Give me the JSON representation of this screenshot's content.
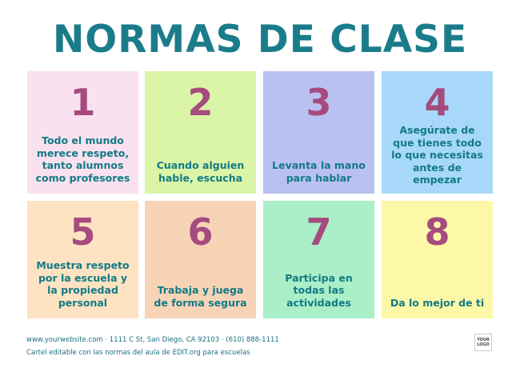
{
  "title": "NORMAS DE CLASE",
  "rules": [
    {
      "number": "1",
      "text": "Todo el mundo\nmerece respeto,\ntanto alumnos\ncomo profesores",
      "color": "#f9e1ef"
    },
    {
      "number": "2",
      "text": "Cuando alguien\nhable, escucha",
      "color": "#daf5a7"
    },
    {
      "number": "3",
      "text": "Levanta la mano\npara hablar",
      "color": "#b9c1f2"
    },
    {
      "number": "4",
      "text": "Asegúrate de\nque tienes todo\nlo que necesitas\nantes de\nempezar",
      "color": "#a7d8f9"
    },
    {
      "number": "5",
      "text": "Muestra respeto\npor la escuela y\nla propiedad\npersonal",
      "color": "#fde3c1"
    },
    {
      "number": "6",
      "text": "Trabaja y juega\nde forma segura",
      "color": "#f8d4b7"
    },
    {
      "number": "7",
      "text": "Participa en\ntodas las\nactividades",
      "color": "#aaefc7"
    },
    {
      "number": "8",
      "text": "Da lo mejor de ti",
      "color": "#fdf8a7"
    }
  ],
  "footer": {
    "contact": "www.yourwebsite.com · 1111 C St, San Diego, CA 92103 · (610) 888-1111",
    "caption": "Cartel editable con las normas del aula de EDIT.org para escuelas",
    "logo": "YOUR LOGO"
  },
  "colors": {
    "title": "#1a7c8b",
    "number": "#a64b7e",
    "text": "#137a86"
  }
}
